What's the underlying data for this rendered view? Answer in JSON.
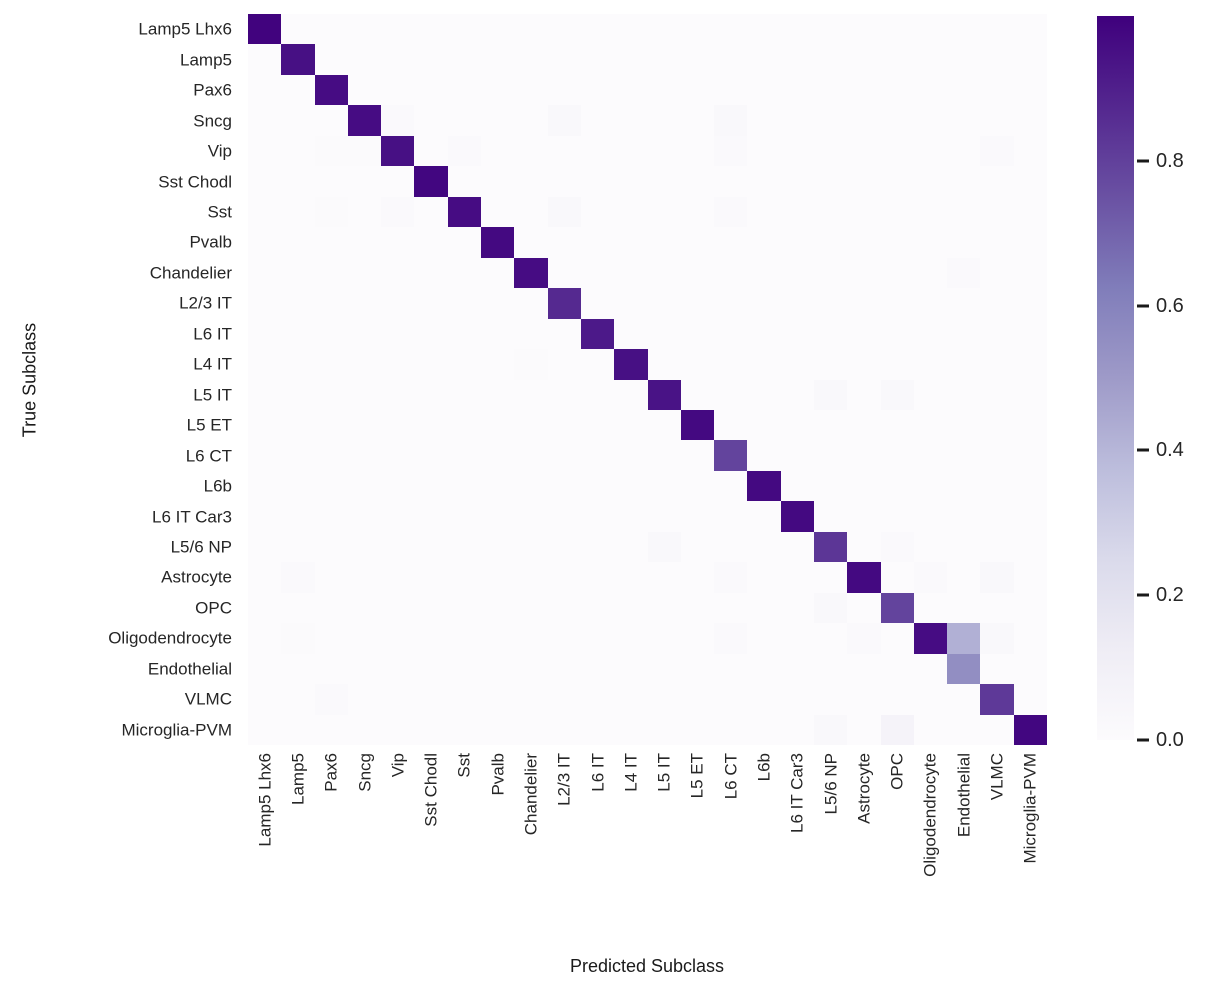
{
  "figure": {
    "background": "#ffffff"
  },
  "axes": {
    "x_label": "Predicted Subclass",
    "y_label": "True Subclass"
  },
  "colorbar": {
    "colormap": "Purples",
    "vmin": 0.0,
    "vmax": 1.0,
    "tick_labels": [
      "0.0",
      "0.2",
      "0.4",
      "0.6",
      "0.8"
    ],
    "tick_values": [
      0.0,
      0.2,
      0.4,
      0.6,
      0.8
    ],
    "anchors": [
      [
        0.0,
        "#fcfbfd"
      ],
      [
        0.125,
        "#efedf5"
      ],
      [
        0.25,
        "#dadaeb"
      ],
      [
        0.375,
        "#bcbddc"
      ],
      [
        0.5,
        "#9e9ac8"
      ],
      [
        0.625,
        "#807dba"
      ],
      [
        0.75,
        "#6a51a3"
      ],
      [
        0.875,
        "#54278f"
      ],
      [
        1.0,
        "#3f007d"
      ]
    ]
  },
  "chart_data": {
    "type": "heatmap",
    "title": "",
    "xlabel": "Predicted Subclass",
    "ylabel": "True Subclass",
    "legend_position": "right-colorbar",
    "value_range": [
      0.0,
      1.0
    ],
    "categories": [
      "Lamp5 Lhx6",
      "Lamp5",
      "Pax6",
      "Sncg",
      "Vip",
      "Sst Chodl",
      "Sst",
      "Pvalb",
      "Chandelier",
      "L2/3 IT",
      "L6 IT",
      "L4 IT",
      "L5 IT",
      "L5 ET",
      "L6 CT",
      "L6b",
      "L6 IT Car3",
      "L5/6 NP",
      "Astrocyte",
      "OPC",
      "Oligodendrocyte",
      "Endothelial",
      "VLMC",
      "Microglia-PVM"
    ],
    "diagonal": [
      0.99,
      0.95,
      0.96,
      0.96,
      0.95,
      0.98,
      0.96,
      0.97,
      0.96,
      0.87,
      0.92,
      0.95,
      0.94,
      0.97,
      0.79,
      0.97,
      0.97,
      0.83,
      0.97,
      0.79,
      0.96,
      0.55,
      0.82,
      0.98
    ],
    "off_diagonal": [
      [
        3,
        4,
        0.02
      ],
      [
        3,
        9,
        0.025
      ],
      [
        3,
        14,
        0.03
      ],
      [
        4,
        2,
        0.01
      ],
      [
        4,
        3,
        0.012
      ],
      [
        4,
        6,
        0.02
      ],
      [
        4,
        14,
        0.015
      ],
      [
        4,
        22,
        0.015
      ],
      [
        6,
        2,
        0.01
      ],
      [
        6,
        4,
        0.015
      ],
      [
        6,
        9,
        0.025
      ],
      [
        6,
        14,
        0.015
      ],
      [
        8,
        21,
        0.02
      ],
      [
        11,
        8,
        0.012
      ],
      [
        12,
        17,
        0.03
      ],
      [
        12,
        19,
        0.025
      ],
      [
        17,
        12,
        0.025
      ],
      [
        17,
        19,
        0.02
      ],
      [
        18,
        1,
        0.02
      ],
      [
        18,
        14,
        0.015
      ],
      [
        18,
        20,
        0.015
      ],
      [
        18,
        22,
        0.025
      ],
      [
        19,
        17,
        0.03
      ],
      [
        20,
        1,
        0.01
      ],
      [
        20,
        14,
        0.02
      ],
      [
        20,
        18,
        0.015
      ],
      [
        20,
        21,
        0.42
      ],
      [
        20,
        22,
        0.03
      ],
      [
        22,
        2,
        0.015
      ],
      [
        23,
        17,
        0.03
      ],
      [
        23,
        19,
        0.07
      ]
    ]
  }
}
